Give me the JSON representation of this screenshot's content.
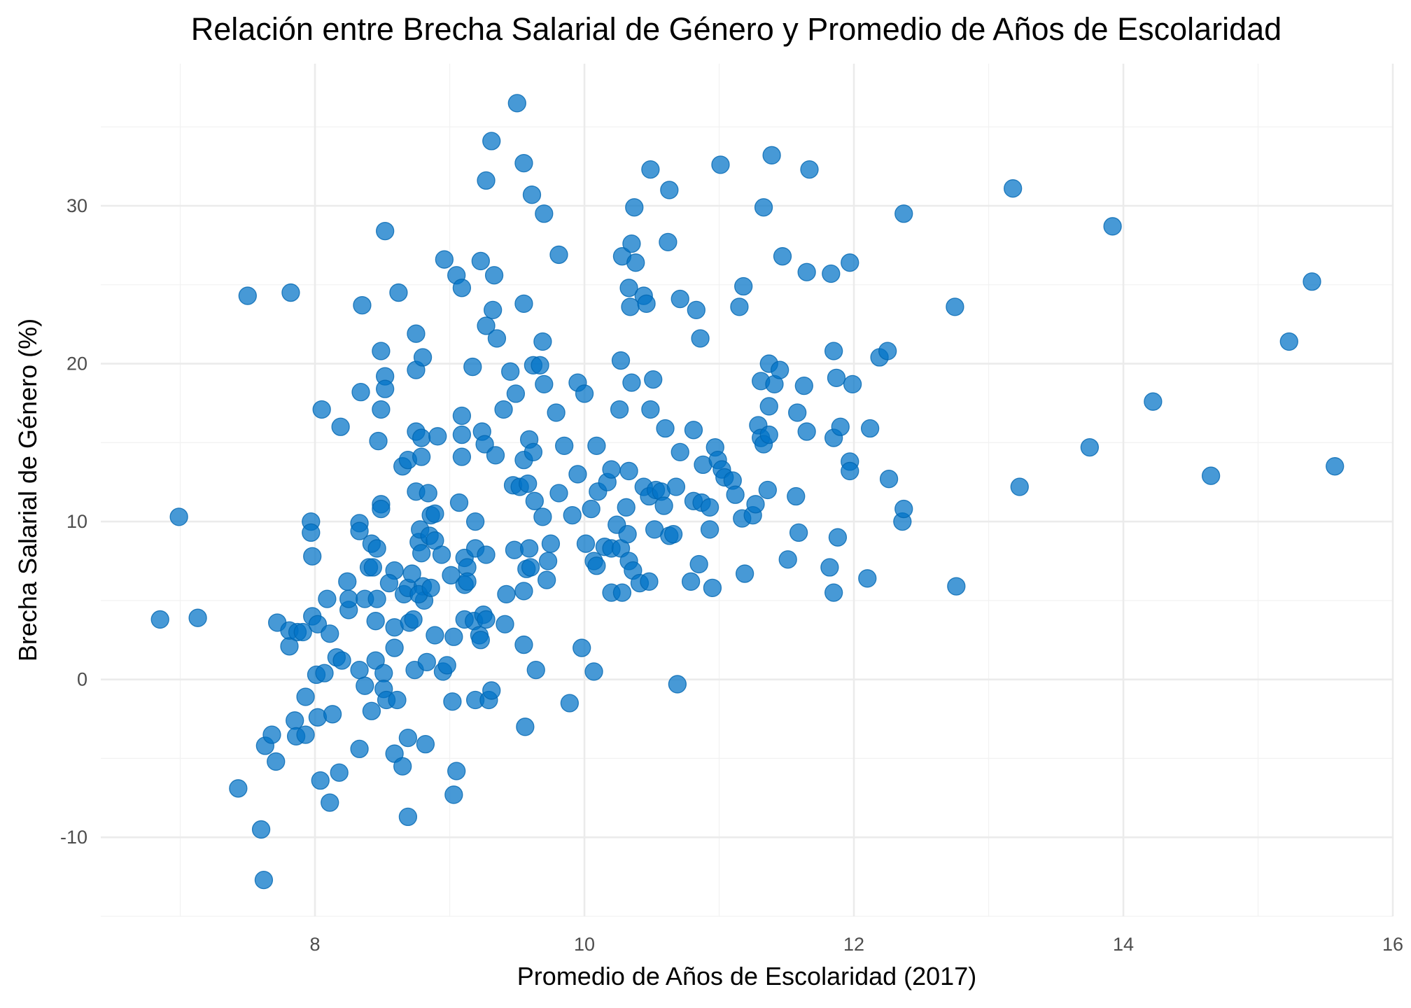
{
  "chart_data": {
    "type": "scatter",
    "title": "Relación entre Brecha Salarial de Género y Promedio de Años de Escolaridad",
    "xlabel": "Promedio de Años de Escolaridad (2017)",
    "ylabel": "Brecha Salarial de Género (%)",
    "xlim": [
      6.41,
      16
    ],
    "ylim": [
      -15,
      39
    ],
    "xticks": [
      8,
      10,
      12,
      14,
      16
    ],
    "yticks": [
      -10,
      0,
      10,
      20,
      30
    ],
    "xminor": [
      7,
      9,
      11,
      13,
      15
    ],
    "yminor": [
      -15,
      -5,
      5,
      15,
      25,
      35
    ],
    "grid": true,
    "legend": "none",
    "color": "#0072C6",
    "points": [
      [
        6.85,
        3.8
      ],
      [
        7.13,
        3.9
      ],
      [
        6.99,
        10.3
      ],
      [
        7.5,
        24.3
      ],
      [
        7.82,
        24.5
      ],
      [
        7.43,
        -6.9
      ],
      [
        7.6,
        -9.5
      ],
      [
        7.62,
        -12.7
      ],
      [
        7.63,
        -4.2
      ],
      [
        7.68,
        -3.5
      ],
      [
        7.71,
        -5.2
      ],
      [
        7.72,
        3.6
      ],
      [
        7.81,
        2.1
      ],
      [
        7.81,
        3.1
      ],
      [
        7.87,
        3.0
      ],
      [
        7.91,
        3.0
      ],
      [
        7.85,
        -2.6
      ],
      [
        7.86,
        -3.6
      ],
      [
        7.93,
        -3.5
      ],
      [
        7.93,
        -1.1
      ],
      [
        7.97,
        10.0
      ],
      [
        7.97,
        9.3
      ],
      [
        7.98,
        7.8
      ],
      [
        7.98,
        4.0
      ],
      [
        8.02,
        3.5
      ],
      [
        8.01,
        0.3
      ],
      [
        8.07,
        0.4
      ],
      [
        8.02,
        -2.4
      ],
      [
        8.04,
        -6.4
      ],
      [
        8.11,
        -7.8
      ],
      [
        8.13,
        -2.2
      ],
      [
        8.05,
        17.1
      ],
      [
        8.09,
        5.1
      ],
      [
        8.11,
        2.9
      ],
      [
        8.19,
        16.0
      ],
      [
        8.16,
        1.4
      ],
      [
        8.2,
        1.2
      ],
      [
        8.18,
        -5.9
      ],
      [
        8.24,
        6.2
      ],
      [
        8.25,
        4.4
      ],
      [
        8.25,
        5.1
      ],
      [
        8.33,
        9.9
      ],
      [
        8.33,
        9.4
      ],
      [
        8.34,
        18.2
      ],
      [
        8.35,
        23.7
      ],
      [
        8.33,
        0.6
      ],
      [
        8.33,
        -4.4
      ],
      [
        8.37,
        -0.4
      ],
      [
        8.37,
        5.1
      ],
      [
        8.4,
        7.1
      ],
      [
        8.42,
        8.6
      ],
      [
        8.43,
        7.1
      ],
      [
        8.46,
        8.3
      ],
      [
        8.42,
        -2.0
      ],
      [
        8.45,
        3.7
      ],
      [
        8.45,
        1.2
      ],
      [
        8.46,
        5.1
      ],
      [
        8.47,
        15.1
      ],
      [
        8.49,
        11.1
      ],
      [
        8.49,
        10.8
      ],
      [
        8.49,
        17.1
      ],
      [
        8.49,
        20.8
      ],
      [
        8.52,
        19.2
      ],
      [
        8.52,
        18.4
      ],
      [
        8.52,
        28.4
      ],
      [
        8.51,
        0.4
      ],
      [
        8.51,
        -0.6
      ],
      [
        8.53,
        -1.3
      ],
      [
        8.59,
        6.9
      ],
      [
        8.55,
        6.1
      ],
      [
        8.59,
        3.3
      ],
      [
        8.59,
        2.0
      ],
      [
        8.61,
        -1.3
      ],
      [
        8.59,
        -4.7
      ],
      [
        8.62,
        24.5
      ],
      [
        8.65,
        -5.5
      ],
      [
        8.65,
        13.5
      ],
      [
        8.69,
        13.9
      ],
      [
        8.66,
        5.4
      ],
      [
        8.69,
        5.8
      ],
      [
        8.7,
        3.6
      ],
      [
        8.73,
        3.8
      ],
      [
        8.72,
        6.7
      ],
      [
        8.69,
        -3.7
      ],
      [
        8.69,
        -8.7
      ],
      [
        8.75,
        11.9
      ],
      [
        8.75,
        15.7
      ],
      [
        8.75,
        21.9
      ],
      [
        8.75,
        19.6
      ],
      [
        8.8,
        20.4
      ],
      [
        8.79,
        15.3
      ],
      [
        8.79,
        14.1
      ],
      [
        8.77,
        8.7
      ],
      [
        8.78,
        9.5
      ],
      [
        8.79,
        8.0
      ],
      [
        8.8,
        5.9
      ],
      [
        8.81,
        5.0
      ],
      [
        8.77,
        5.4
      ],
      [
        8.74,
        0.6
      ],
      [
        8.83,
        1.1
      ],
      [
        8.82,
        -4.1
      ],
      [
        8.84,
        11.8
      ],
      [
        8.86,
        10.4
      ],
      [
        8.89,
        10.5
      ],
      [
        8.85,
        9.1
      ],
      [
        8.89,
        8.8
      ],
      [
        8.91,
        15.4
      ],
      [
        8.94,
        7.9
      ],
      [
        8.89,
        2.8
      ],
      [
        8.86,
        5.8
      ],
      [
        8.95,
        0.5
      ],
      [
        8.98,
        0.9
      ],
      [
        8.96,
        26.6
      ],
      [
        9.01,
        6.6
      ],
      [
        9.03,
        2.7
      ],
      [
        9.02,
        -1.4
      ],
      [
        9.03,
        -7.3
      ],
      [
        9.05,
        -5.8
      ],
      [
        9.05,
        25.6
      ],
      [
        9.09,
        24.8
      ],
      [
        9.07,
        11.2
      ],
      [
        9.09,
        16.7
      ],
      [
        9.09,
        15.5
      ],
      [
        9.09,
        14.1
      ],
      [
        9.11,
        7.7
      ],
      [
        9.11,
        6.0
      ],
      [
        9.13,
        7.1
      ],
      [
        9.11,
        3.8
      ],
      [
        9.13,
        6.2
      ],
      [
        9.18,
        3.7
      ],
      [
        9.19,
        10.0
      ],
      [
        9.19,
        8.3
      ],
      [
        9.19,
        -1.3
      ],
      [
        9.17,
        19.8
      ],
      [
        9.22,
        2.8
      ],
      [
        9.23,
        2.5
      ],
      [
        9.25,
        4.1
      ],
      [
        9.27,
        3.8
      ],
      [
        9.27,
        7.9
      ],
      [
        9.24,
        15.7
      ],
      [
        9.26,
        14.9
      ],
      [
        9.23,
        26.5
      ],
      [
        9.27,
        31.6
      ],
      [
        9.27,
        22.4
      ],
      [
        9.31,
        34.1
      ],
      [
        9.32,
        23.4
      ],
      [
        9.33,
        25.6
      ],
      [
        9.35,
        21.6
      ],
      [
        9.34,
        14.2
      ],
      [
        9.29,
        -1.3
      ],
      [
        9.31,
        -0.7
      ],
      [
        9.4,
        17.1
      ],
      [
        9.42,
        5.4
      ],
      [
        9.41,
        3.5
      ],
      [
        9.45,
        19.5
      ],
      [
        9.47,
        12.3
      ],
      [
        9.48,
        8.2
      ],
      [
        9.49,
        18.1
      ],
      [
        9.5,
        36.5
      ],
      [
        9.52,
        12.2
      ],
      [
        9.55,
        23.8
      ],
      [
        9.55,
        32.7
      ],
      [
        9.55,
        13.9
      ],
      [
        9.55,
        5.6
      ],
      [
        9.55,
        2.2
      ],
      [
        9.56,
        -3.0
      ],
      [
        9.58,
        12.4
      ],
      [
        9.59,
        15.2
      ],
      [
        9.59,
        8.3
      ],
      [
        9.57,
        7.0
      ],
      [
        9.61,
        30.7
      ],
      [
        9.62,
        19.9
      ],
      [
        9.62,
        14.4
      ],
      [
        9.6,
        7.1
      ],
      [
        9.63,
        11.3
      ],
      [
        9.67,
        19.9
      ],
      [
        9.64,
        0.6
      ],
      [
        9.69,
        21.4
      ],
      [
        9.7,
        29.5
      ],
      [
        9.7,
        18.7
      ],
      [
        9.69,
        10.3
      ],
      [
        9.72,
        6.3
      ],
      [
        9.73,
        7.5
      ],
      [
        9.75,
        8.6
      ],
      [
        9.79,
        16.9
      ],
      [
        9.81,
        26.9
      ],
      [
        9.81,
        11.8
      ],
      [
        9.85,
        14.8
      ],
      [
        9.89,
        -1.5
      ],
      [
        9.91,
        10.4
      ],
      [
        9.95,
        18.8
      ],
      [
        9.95,
        13.0
      ],
      [
        9.98,
        2.0
      ],
      [
        10.0,
        18.1
      ],
      [
        10.01,
        8.6
      ],
      [
        10.05,
        10.8
      ],
      [
        10.07,
        0.5
      ],
      [
        10.07,
        7.5
      ],
      [
        10.09,
        7.2
      ],
      [
        10.09,
        14.8
      ],
      [
        10.1,
        11.9
      ],
      [
        10.15,
        8.4
      ],
      [
        10.17,
        12.5
      ],
      [
        10.2,
        13.3
      ],
      [
        10.2,
        8.3
      ],
      [
        10.2,
        5.5
      ],
      [
        10.24,
        9.8
      ],
      [
        10.26,
        17.1
      ],
      [
        10.27,
        20.2
      ],
      [
        10.28,
        26.8
      ],
      [
        10.27,
        8.3
      ],
      [
        10.28,
        5.5
      ],
      [
        10.31,
        10.9
      ],
      [
        10.32,
        9.2
      ],
      [
        10.33,
        13.2
      ],
      [
        10.33,
        24.8
      ],
      [
        10.34,
        23.6
      ],
      [
        10.35,
        27.6
      ],
      [
        10.35,
        18.8
      ],
      [
        10.33,
        7.5
      ],
      [
        10.36,
        6.9
      ],
      [
        10.37,
        29.9
      ],
      [
        10.38,
        26.4
      ],
      [
        10.41,
        6.1
      ],
      [
        10.44,
        24.3
      ],
      [
        10.46,
        23.8
      ],
      [
        10.44,
        12.2
      ],
      [
        10.48,
        11.6
      ],
      [
        10.49,
        32.3
      ],
      [
        10.49,
        17.1
      ],
      [
        10.48,
        6.2
      ],
      [
        10.51,
        19.0
      ],
      [
        10.52,
        9.5
      ],
      [
        10.53,
        12.0
      ],
      [
        10.57,
        11.9
      ],
      [
        10.59,
        11.0
      ],
      [
        10.6,
        15.9
      ],
      [
        10.62,
        27.7
      ],
      [
        10.63,
        31.0
      ],
      [
        10.63,
        9.1
      ],
      [
        10.66,
        9.2
      ],
      [
        10.68,
        12.2
      ],
      [
        10.69,
        -0.3
      ],
      [
        10.71,
        24.1
      ],
      [
        10.71,
        14.4
      ],
      [
        10.79,
        6.2
      ],
      [
        10.81,
        15.8
      ],
      [
        10.81,
        11.3
      ],
      [
        10.83,
        23.4
      ],
      [
        10.85,
        7.3
      ],
      [
        10.86,
        21.6
      ],
      [
        10.87,
        11.2
      ],
      [
        10.88,
        13.6
      ],
      [
        10.93,
        10.9
      ],
      [
        10.93,
        9.5
      ],
      [
        10.95,
        5.8
      ],
      [
        10.97,
        14.7
      ],
      [
        10.99,
        13.9
      ],
      [
        11.01,
        32.6
      ],
      [
        11.02,
        13.3
      ],
      [
        11.04,
        12.8
      ],
      [
        11.1,
        12.6
      ],
      [
        11.12,
        11.7
      ],
      [
        11.15,
        23.6
      ],
      [
        11.17,
        10.2
      ],
      [
        11.18,
        24.9
      ],
      [
        11.19,
        6.7
      ],
      [
        11.25,
        10.4
      ],
      [
        11.27,
        11.1
      ],
      [
        11.29,
        16.1
      ],
      [
        11.31,
        18.9
      ],
      [
        11.31,
        15.3
      ],
      [
        11.33,
        14.9
      ],
      [
        11.33,
        29.9
      ],
      [
        11.36,
        12.0
      ],
      [
        11.37,
        17.3
      ],
      [
        11.37,
        20.0
      ],
      [
        11.37,
        15.5
      ],
      [
        11.39,
        33.2
      ],
      [
        11.41,
        18.7
      ],
      [
        11.45,
        19.6
      ],
      [
        11.47,
        26.8
      ],
      [
        11.51,
        7.6
      ],
      [
        11.57,
        11.6
      ],
      [
        11.58,
        16.9
      ],
      [
        11.59,
        9.3
      ],
      [
        11.63,
        18.6
      ],
      [
        11.65,
        25.8
      ],
      [
        11.65,
        15.7
      ],
      [
        11.67,
        32.3
      ],
      [
        11.82,
        7.1
      ],
      [
        11.83,
        25.7
      ],
      [
        11.85,
        15.3
      ],
      [
        11.85,
        5.5
      ],
      [
        11.85,
        20.8
      ],
      [
        11.87,
        19.1
      ],
      [
        11.88,
        9.0
      ],
      [
        11.9,
        16.0
      ],
      [
        11.97,
        26.4
      ],
      [
        11.97,
        13.8
      ],
      [
        11.97,
        13.2
      ],
      [
        11.99,
        18.7
      ],
      [
        12.1,
        6.4
      ],
      [
        12.12,
        15.9
      ],
      [
        12.19,
        20.4
      ],
      [
        12.25,
        20.8
      ],
      [
        12.26,
        12.7
      ],
      [
        12.36,
        10.0
      ],
      [
        12.37,
        29.5
      ],
      [
        12.37,
        10.8
      ],
      [
        12.75,
        23.6
      ],
      [
        12.76,
        5.9
      ],
      [
        13.18,
        31.1
      ],
      [
        13.23,
        12.2
      ],
      [
        13.75,
        14.7
      ],
      [
        13.92,
        28.7
      ],
      [
        14.22,
        17.6
      ],
      [
        14.65,
        12.9
      ],
      [
        15.23,
        21.4
      ],
      [
        15.4,
        25.2
      ],
      [
        15.57,
        13.5
      ]
    ]
  }
}
